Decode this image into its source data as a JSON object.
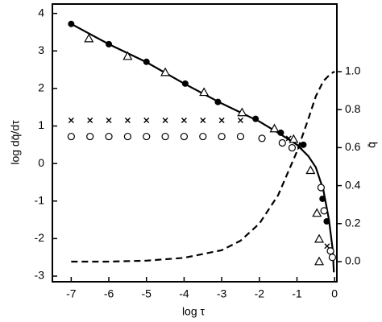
{
  "chart_data": {
    "type": "scatter",
    "xlabel": "log τ",
    "ylabel": "log dq̄/dτ",
    "y2label": "q̄",
    "xlim": [
      -7.5,
      0.06
    ],
    "ylim": [
      -3.15,
      4.25
    ],
    "y2lim": [
      -0.106,
      1.356
    ],
    "xticks": [
      -7,
      -6,
      -5,
      -4,
      -3,
      -2,
      -1,
      0
    ],
    "yticks": [
      -3,
      -2,
      -1,
      0,
      1,
      2,
      3,
      4
    ],
    "y2ticks": [
      {
        "value": 0,
        "label": "0.0"
      },
      {
        "value": 0.2,
        "label": "0.2"
      },
      {
        "value": 0.4,
        "label": "0.4"
      },
      {
        "value": 0.6,
        "label": "0.6"
      },
      {
        "value": 0.8,
        "label": "0.8"
      },
      {
        "value": 1,
        "label": "1.0"
      }
    ],
    "color": "#000000",
    "series": [
      {
        "marker": "line",
        "x": [
          -7,
          -6,
          -5,
          -4,
          -3,
          -2,
          -1.5,
          -1,
          -0.7,
          -0.5,
          -0.3,
          -0.15,
          -0.05,
          -0.02
        ],
        "values": [
          3.72,
          3.18,
          2.7,
          2.13,
          1.6,
          1.12,
          0.82,
          0.5,
          0.2,
          -0.1,
          -0.7,
          -1.5,
          -2.3,
          -2.9
        ]
      },
      {
        "marker": "dashed",
        "axis": "y2",
        "x": [
          -7,
          -6,
          -5,
          -4,
          -3,
          -2.5,
          -2,
          -1.5,
          -1,
          -0.7,
          -0.5,
          -0.3,
          -0.1,
          0
        ],
        "values": [
          0,
          0,
          0.005,
          0.02,
          0.06,
          0.11,
          0.2,
          0.35,
          0.58,
          0.75,
          0.87,
          0.95,
          0.99,
          1.0
        ]
      },
      {
        "marker": "filled-circle",
        "x": [
          -7,
          -6,
          -5,
          -3.97,
          -3.1,
          -2.1,
          -1.43,
          -0.83,
          -0.32,
          -0.21
        ],
        "values": [
          3.72,
          3.18,
          2.71,
          2.13,
          1.64,
          1.19,
          0.82,
          0.5,
          -0.94,
          -1.54
        ]
      },
      {
        "marker": "triangle",
        "x": [
          -6.53,
          -5.5,
          -4.5,
          -3.47,
          -2.46,
          -1.6,
          -1.09,
          -0.64,
          -0.47,
          -0.41,
          -0.41
        ],
        "values": [
          3.33,
          2.86,
          2.43,
          1.9,
          1.36,
          0.93,
          0.65,
          -0.18,
          -1.32,
          -2.01,
          -2.61
        ]
      },
      {
        "marker": "cross",
        "x": [
          -7,
          -6.5,
          -6,
          -5.5,
          -5,
          -4.5,
          -4,
          -3.5,
          -3,
          -2.5,
          -1.22,
          -0.92,
          -0.2
        ],
        "values": [
          1.15,
          1.15,
          1.15,
          1.15,
          1.15,
          1.15,
          1.15,
          1.15,
          1.15,
          1.15,
          0.67,
          0.44,
          -2.2
        ]
      },
      {
        "marker": "open-circle",
        "x": [
          -7,
          -6.5,
          -6,
          -5.5,
          -5,
          -4.5,
          -4,
          -3.5,
          -3,
          -2.5,
          -1.93,
          -1.39,
          -1.13,
          -0.36,
          -0.28,
          -0.11,
          -0.06
        ],
        "values": [
          0.72,
          0.72,
          0.72,
          0.72,
          0.72,
          0.72,
          0.72,
          0.72,
          0.72,
          0.72,
          0.67,
          0.55,
          0.42,
          -0.64,
          -1.26,
          -2.33,
          -2.5
        ]
      }
    ]
  }
}
